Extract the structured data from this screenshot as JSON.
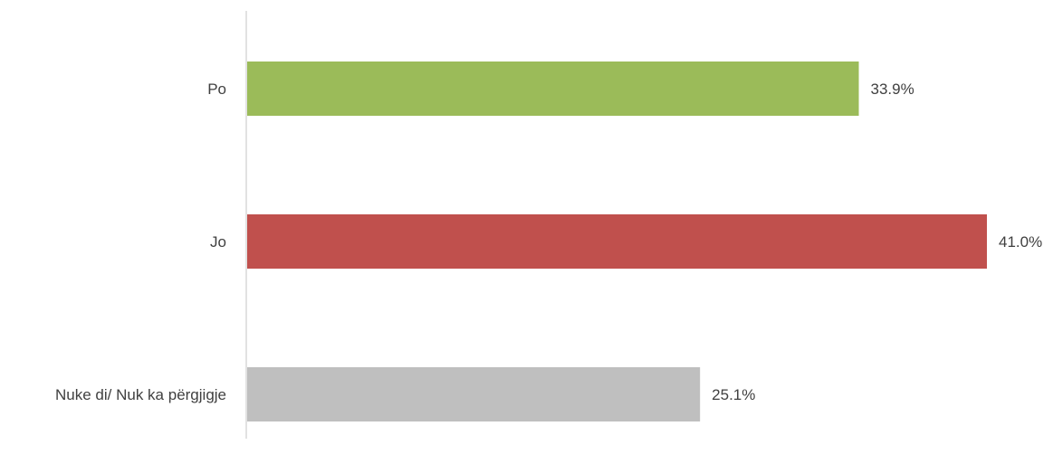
{
  "chart_data": {
    "type": "bar",
    "orientation": "horizontal",
    "categories": [
      "Po",
      "Jo",
      "Nuke di/ Nuk ka përgjigje"
    ],
    "values": [
      33.9,
      41.0,
      25.1
    ],
    "value_labels": [
      "33.9%",
      "41.0%",
      "25.1%"
    ],
    "colors": [
      "#9BBB59",
      "#C0504D",
      "#BFBFBF"
    ],
    "axis_color": "#D9D9D9",
    "grid": false,
    "legend": "none",
    "title": "",
    "xlabel": "",
    "ylabel": "",
    "xlim": [
      0,
      41.0
    ]
  }
}
